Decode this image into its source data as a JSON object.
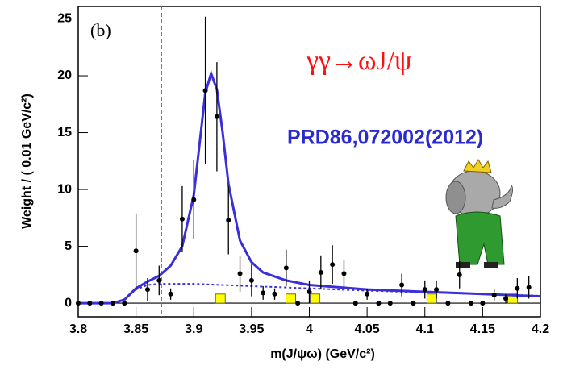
{
  "chart_data": {
    "type": "scatter",
    "panel_label": "(b)",
    "annotations": [
      "γγ→ωJ/ψ",
      "PRD86,072002(2012)"
    ],
    "x_label": "m(J/ψω) (GeV/c²)",
    "y_label": "Weight / ( 0.01 GeV/c²)",
    "xlim": [
      3.8,
      4.2
    ],
    "ylim": [
      -1.2,
      26.1
    ],
    "xticks": [
      3.8,
      3.85,
      3.9,
      3.95,
      4,
      4.05,
      4.1,
      4.15,
      4.2
    ],
    "yticks": [
      0,
      5,
      10,
      15,
      20,
      25
    ],
    "vline": {
      "x": 3.872,
      "color": "#ff3030"
    },
    "series": [
      {
        "type": "errorbar",
        "color": "#000000",
        "x": [
          3.8,
          3.81,
          3.82,
          3.83,
          3.84,
          3.85,
          3.86,
          3.87,
          3.88,
          3.89,
          3.9,
          3.91,
          3.92,
          3.93,
          3.94,
          3.95,
          3.96,
          3.97,
          3.98,
          3.99,
          4.0,
          4.01,
          4.02,
          4.03,
          4.04,
          4.05,
          4.06,
          4.07,
          4.08,
          4.09,
          4.1,
          4.11,
          4.12,
          4.13,
          4.14,
          4.15,
          4.16,
          4.17,
          4.18,
          4.19
        ],
        "values": [
          0,
          0,
          0,
          0,
          0,
          4.6,
          1.2,
          2.0,
          0.8,
          7.4,
          9.1,
          18.7,
          16.4,
          7.3,
          2.6,
          2.0,
          0.9,
          0.8,
          3.1,
          0,
          1.0,
          2.7,
          3.4,
          2.6,
          0,
          0.8,
          0,
          0,
          1.6,
          0,
          1.2,
          1.2,
          0,
          2.5,
          0,
          0,
          0.7,
          0.4,
          1.3,
          1.4
        ],
        "errors": [
          0.2,
          0.2,
          0.2,
          0.2,
          0.2,
          3.3,
          1.0,
          1.3,
          0.5,
          2.9,
          3.5,
          6.5,
          4.8,
          3.0,
          1.6,
          1.4,
          0.6,
          0.5,
          1.6,
          0.2,
          1.0,
          1.5,
          1.7,
          1.2,
          0.2,
          0.5,
          0.2,
          0.2,
          1.0,
          0.2,
          0.8,
          0.8,
          0.2,
          1.2,
          0.2,
          0.2,
          0.5,
          0.4,
          0.9,
          1.0
        ]
      },
      {
        "type": "line",
        "color": "#3a2fd8",
        "dashed": false,
        "x": [
          3.8,
          3.83,
          3.84,
          3.85,
          3.86,
          3.87,
          3.88,
          3.89,
          3.9,
          3.905,
          3.91,
          3.915,
          3.92,
          3.925,
          3.93,
          3.94,
          3.95,
          3.96,
          3.98,
          4.0,
          4.05,
          4.1,
          4.15,
          4.2
        ],
        "values": [
          0,
          0,
          0.3,
          1.3,
          1.9,
          2.4,
          3.3,
          5.0,
          9.5,
          14,
          18.5,
          20.2,
          18.8,
          15,
          10.5,
          5.5,
          3.6,
          2.7,
          2.0,
          1.6,
          1.2,
          1.0,
          0.8,
          0.6
        ]
      },
      {
        "type": "line",
        "color": "#3a2fd8",
        "dashed": true,
        "x": [
          3.84,
          3.85,
          3.86,
          3.87,
          3.9,
          3.95,
          4.0,
          4.05,
          4.1,
          4.15,
          4.2
        ],
        "values": [
          0.3,
          1.2,
          1.6,
          1.7,
          1.7,
          1.5,
          1.3,
          1.1,
          0.95,
          0.8,
          0.65
        ]
      },
      {
        "type": "box",
        "color": "#ffff00",
        "x": [
          3.923,
          3.984,
          4.005,
          4.106,
          4.176
        ],
        "values": [
          0.8,
          0.8,
          0.8,
          0.8,
          0.8
        ]
      }
    ]
  }
}
